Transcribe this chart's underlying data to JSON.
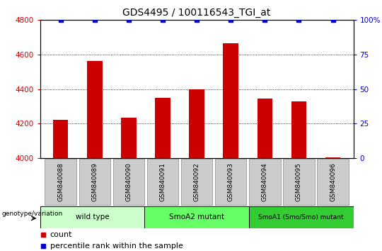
{
  "title": "GDS4495 / 100116543_TGI_at",
  "samples": [
    "GSM840088",
    "GSM840089",
    "GSM840090",
    "GSM840091",
    "GSM840092",
    "GSM840093",
    "GSM840094",
    "GSM840095",
    "GSM840096"
  ],
  "counts": [
    4220,
    4565,
    4235,
    4350,
    4400,
    4665,
    4345,
    4330,
    4005
  ],
  "percentile_ranks": [
    100,
    100,
    100,
    100,
    100,
    100,
    100,
    100,
    100
  ],
  "ylim_left": [
    4000,
    4800
  ],
  "ylim_right": [
    0,
    100
  ],
  "yticks_left": [
    4000,
    4200,
    4400,
    4600,
    4800
  ],
  "yticks_right": [
    0,
    25,
    50,
    75,
    100
  ],
  "bar_color": "#cc0000",
  "dot_color": "#0000cc",
  "groups": [
    {
      "label": "wild type",
      "start": 0,
      "end": 3,
      "color": "#ccffcc"
    },
    {
      "label": "SmoA2 mutant",
      "start": 3,
      "end": 6,
      "color": "#66ff66"
    },
    {
      "label": "SmoA1 (Smo/Smo) mutant",
      "start": 6,
      "end": 9,
      "color": "#33cc33"
    }
  ],
  "legend_count_label": "count",
  "legend_percentile_label": "percentile rank within the sample",
  "genotype_label": "genotype/variation",
  "title_fontsize": 10,
  "tick_fontsize": 7.5,
  "bar_width": 0.45,
  "sample_box_color": "#cccccc",
  "sample_box_edge": "#888888",
  "fig_width": 5.4,
  "fig_height": 3.54,
  "dpi": 100
}
